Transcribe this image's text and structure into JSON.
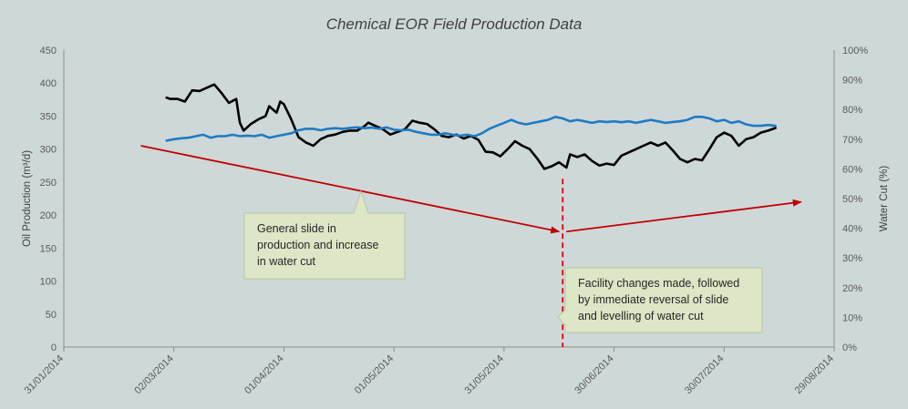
{
  "chart_data": {
    "type": "line",
    "title": "Chemical EOR Field Production Data",
    "ylabel": "Oil Production (m³/d)",
    "y2label": "Water Cut (%)",
    "x_range": [
      "2014-01-31",
      "2014-08-29"
    ],
    "x_ticks": [
      "31/01/2014",
      "02/03/2014",
      "01/04/2014",
      "01/05/2014",
      "31/05/2014",
      "30/06/2014",
      "30/07/2014",
      "29/08/2014"
    ],
    "ylim": [
      0,
      450
    ],
    "y_ticks": [
      "0",
      "50",
      "100",
      "150",
      "200",
      "250",
      "300",
      "350",
      "400",
      "450"
    ],
    "y2lim": [
      0,
      100
    ],
    "y2_ticks": [
      "0%",
      "10%",
      "20%",
      "30%",
      "40%",
      "50%",
      "60%",
      "70%",
      "80%",
      "90%",
      "100%"
    ],
    "series": [
      {
        "axis": "left",
        "color": "#000000",
        "points": [
          [
            "2014-02-28",
            378
          ],
          [
            "2014-03-01",
            376
          ],
          [
            "2014-03-03",
            376
          ],
          [
            "2014-03-05",
            372
          ],
          [
            "2014-03-07",
            389
          ],
          [
            "2014-03-09",
            388
          ],
          [
            "2014-03-11",
            393
          ],
          [
            "2014-03-13",
            398
          ],
          [
            "2014-03-15",
            385
          ],
          [
            "2014-03-17",
            370
          ],
          [
            "2014-03-19",
            376
          ],
          [
            "2014-03-20",
            340
          ],
          [
            "2014-03-21",
            328
          ],
          [
            "2014-03-23",
            338
          ],
          [
            "2014-03-25",
            345
          ],
          [
            "2014-03-27",
            350
          ],
          [
            "2014-03-28",
            365
          ],
          [
            "2014-03-30",
            355
          ],
          [
            "2014-03-31",
            372
          ],
          [
            "2014-04-01",
            368
          ],
          [
            "2014-04-03",
            345
          ],
          [
            "2014-04-05",
            318
          ],
          [
            "2014-04-07",
            310
          ],
          [
            "2014-04-09",
            305
          ],
          [
            "2014-04-11",
            315
          ],
          [
            "2014-04-13",
            320
          ],
          [
            "2014-04-15",
            322
          ],
          [
            "2014-04-17",
            326
          ],
          [
            "2014-04-19",
            328
          ],
          [
            "2014-04-21",
            328
          ],
          [
            "2014-04-23",
            335
          ],
          [
            "2014-04-24",
            340
          ],
          [
            "2014-04-26",
            335
          ],
          [
            "2014-04-28",
            330
          ],
          [
            "2014-04-30",
            322
          ],
          [
            "2014-05-02",
            326
          ],
          [
            "2014-05-04",
            330
          ],
          [
            "2014-05-06",
            343
          ],
          [
            "2014-05-08",
            340
          ],
          [
            "2014-05-10",
            338
          ],
          [
            "2014-05-12",
            330
          ],
          [
            "2014-05-14",
            320
          ],
          [
            "2014-05-16",
            318
          ],
          [
            "2014-05-18",
            322
          ],
          [
            "2014-05-20",
            316
          ],
          [
            "2014-05-22",
            320
          ],
          [
            "2014-05-24",
            314
          ],
          [
            "2014-05-26",
            296
          ],
          [
            "2014-05-28",
            295
          ],
          [
            "2014-05-30",
            289
          ],
          [
            "2014-06-01",
            300
          ],
          [
            "2014-06-03",
            312
          ],
          [
            "2014-06-05",
            305
          ],
          [
            "2014-06-07",
            300
          ],
          [
            "2014-06-09",
            286
          ],
          [
            "2014-06-11",
            270
          ],
          [
            "2014-06-13",
            274
          ],
          [
            "2014-06-15",
            280
          ],
          [
            "2014-06-17",
            272
          ],
          [
            "2014-06-18",
            292
          ],
          [
            "2014-06-20",
            288
          ],
          [
            "2014-06-22",
            292
          ],
          [
            "2014-06-24",
            282
          ],
          [
            "2014-06-26",
            275
          ],
          [
            "2014-06-28",
            278
          ],
          [
            "2014-06-30",
            276
          ],
          [
            "2014-07-02",
            290
          ],
          [
            "2014-07-04",
            295
          ],
          [
            "2014-07-06",
            300
          ],
          [
            "2014-07-08",
            305
          ],
          [
            "2014-07-10",
            310
          ],
          [
            "2014-07-12",
            305
          ],
          [
            "2014-07-14",
            310
          ],
          [
            "2014-07-16",
            298
          ],
          [
            "2014-07-18",
            285
          ],
          [
            "2014-07-20",
            280
          ],
          [
            "2014-07-22",
            285
          ],
          [
            "2014-07-24",
            283
          ],
          [
            "2014-07-26",
            300
          ],
          [
            "2014-07-28",
            318
          ],
          [
            "2014-07-30",
            325
          ],
          [
            "2014-08-01",
            320
          ],
          [
            "2014-08-03",
            305
          ],
          [
            "2014-08-05",
            315
          ],
          [
            "2014-08-07",
            318
          ],
          [
            "2014-08-09",
            325
          ],
          [
            "2014-08-11",
            328
          ],
          [
            "2014-08-13",
            332
          ]
        ]
      },
      {
        "axis": "right",
        "color": "#1f7bc4",
        "points": [
          [
            "2014-02-28",
            69.5
          ],
          [
            "2014-03-02",
            70.0
          ],
          [
            "2014-03-04",
            70.3
          ],
          [
            "2014-03-06",
            70.5
          ],
          [
            "2014-03-08",
            71.0
          ],
          [
            "2014-03-10",
            71.5
          ],
          [
            "2014-03-12",
            70.5
          ],
          [
            "2014-03-14",
            71.0
          ],
          [
            "2014-03-16",
            71.0
          ],
          [
            "2014-03-18",
            71.5
          ],
          [
            "2014-03-20",
            71.0
          ],
          [
            "2014-03-22",
            71.2
          ],
          [
            "2014-03-24",
            71.0
          ],
          [
            "2014-03-26",
            71.5
          ],
          [
            "2014-03-28",
            70.5
          ],
          [
            "2014-03-30",
            71.0
          ],
          [
            "2014-04-01",
            71.5
          ],
          [
            "2014-04-03",
            72.0
          ],
          [
            "2014-04-05",
            73.0
          ],
          [
            "2014-04-07",
            73.5
          ],
          [
            "2014-04-09",
            73.5
          ],
          [
            "2014-04-11",
            73.0
          ],
          [
            "2014-04-13",
            73.5
          ],
          [
            "2014-04-15",
            73.7
          ],
          [
            "2014-04-17",
            73.5
          ],
          [
            "2014-04-19",
            73.8
          ],
          [
            "2014-04-21",
            74.0
          ],
          [
            "2014-04-23",
            73.7
          ],
          [
            "2014-04-25",
            73.9
          ],
          [
            "2014-04-27",
            73.5
          ],
          [
            "2014-04-29",
            74.0
          ],
          [
            "2014-05-01",
            73.2
          ],
          [
            "2014-05-03",
            73.0
          ],
          [
            "2014-05-05",
            73.2
          ],
          [
            "2014-05-07",
            72.5
          ],
          [
            "2014-05-09",
            72.0
          ],
          [
            "2014-05-11",
            71.5
          ],
          [
            "2014-05-13",
            71.5
          ],
          [
            "2014-05-15",
            72.0
          ],
          [
            "2014-05-17",
            71.5
          ],
          [
            "2014-05-19",
            71.2
          ],
          [
            "2014-05-21",
            71.5
          ],
          [
            "2014-05-23",
            71.0
          ],
          [
            "2014-05-25",
            72.0
          ],
          [
            "2014-05-27",
            73.5
          ],
          [
            "2014-05-29",
            74.5
          ],
          [
            "2014-05-31",
            75.5
          ],
          [
            "2014-06-02",
            76.5
          ],
          [
            "2014-06-04",
            75.5
          ],
          [
            "2014-06-06",
            75.0
          ],
          [
            "2014-06-08",
            75.5
          ],
          [
            "2014-06-10",
            76.0
          ],
          [
            "2014-06-12",
            76.5
          ],
          [
            "2014-06-14",
            77.5
          ],
          [
            "2014-06-16",
            77.0
          ],
          [
            "2014-06-18",
            76.0
          ],
          [
            "2014-06-20",
            76.5
          ],
          [
            "2014-06-22",
            76.0
          ],
          [
            "2014-06-24",
            75.5
          ],
          [
            "2014-06-26",
            76.0
          ],
          [
            "2014-06-28",
            75.8
          ],
          [
            "2014-06-30",
            76.0
          ],
          [
            "2014-07-02",
            75.7
          ],
          [
            "2014-07-04",
            76.0
          ],
          [
            "2014-07-06",
            75.5
          ],
          [
            "2014-07-08",
            76.0
          ],
          [
            "2014-07-10",
            76.5
          ],
          [
            "2014-07-12",
            76.0
          ],
          [
            "2014-07-14",
            75.5
          ],
          [
            "2014-07-16",
            75.8
          ],
          [
            "2014-07-18",
            76.0
          ],
          [
            "2014-07-20",
            76.5
          ],
          [
            "2014-07-22",
            77.5
          ],
          [
            "2014-07-24",
            77.5
          ],
          [
            "2014-07-26",
            77.0
          ],
          [
            "2014-07-28",
            76.0
          ],
          [
            "2014-07-30",
            76.5
          ],
          [
            "2014-08-01",
            75.5
          ],
          [
            "2014-08-03",
            76.0
          ],
          [
            "2014-08-05",
            75.0
          ],
          [
            "2014-08-07",
            74.5
          ],
          [
            "2014-08-09",
            74.5
          ],
          [
            "2014-08-11",
            74.8
          ],
          [
            "2014-08-13",
            74.5
          ]
        ]
      }
    ],
    "annotations": {
      "trend_down": {
        "from": [
          "2014-02-21",
          305
        ],
        "to": [
          "2014-06-15",
          175
        ],
        "color": "#c00000"
      },
      "trend_up": {
        "from": [
          "2014-06-17",
          175
        ],
        "to": [
          "2014-08-20",
          220
        ],
        "color": "#c00000"
      },
      "event_line": {
        "date": "2014-06-16",
        "from": 255,
        "to": 0,
        "color": "#e00000"
      },
      "callouts": [
        {
          "lines": [
            "General slide in",
            "production  and increase",
            "in water cut"
          ]
        },
        {
          "lines": [
            "Facility changes made, followed",
            "by immediate reversal of slide",
            "and levelling of water cut"
          ]
        }
      ]
    },
    "grid": false,
    "legend": "none"
  }
}
